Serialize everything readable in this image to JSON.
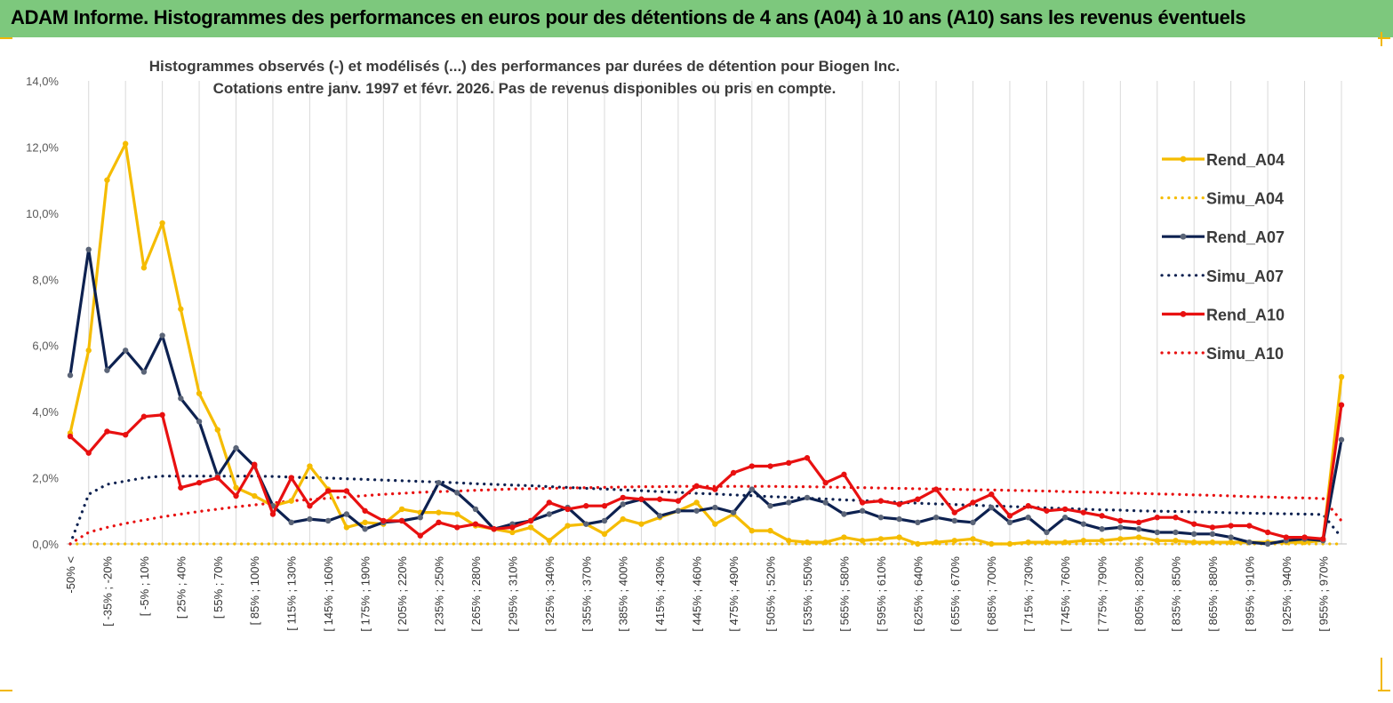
{
  "header": {
    "title": "ADAM Informe. Histogrammes des performances en euros pour des détentions de 4 ans (A04) à 10 ans (A10) sans les revenus éventuels"
  },
  "colors": {
    "header_bg": "#7dc87d",
    "A04": "#f5bc00",
    "A07": "#0d2150",
    "A07_marker": "#5b6578",
    "A10": "#e81010",
    "grid": "#d9d9d9",
    "corner_accent": "#f2b705"
  },
  "chart_data": {
    "type": "line",
    "title": [
      "Histogrammes observés (-) et modélisés (...) des performances par durées de détention pour Biogen Inc.",
      "Cotations entre janv. 1997 et févr. 2026. Pas de revenus disponibles ou pris en compte."
    ],
    "ylim": [
      0,
      14
    ],
    "yticks": [
      "0,0%",
      "2,0%",
      "4,0%",
      "6,0%",
      "8,0%",
      "10,0%",
      "12,0%",
      "14,0%"
    ],
    "grid": "vertical",
    "legend_position": "right",
    "xticklabels": [
      "-50% <",
      "[ -35% ; -20%",
      "[ -5% ; 10%",
      "[ 25% ; 40%",
      "[ 55% ; 70%",
      "[ 85% ; 100%",
      "[ 115% ; 130%",
      "[ 145% ; 160%",
      "[ 175% ; 190%",
      "[ 205% ; 220%",
      "[ 235% ; 250%",
      "[ 265% ; 280%",
      "[ 295% ; 310%",
      "[ 325% ; 340%",
      "[ 355% ; 370%",
      "[ 385% ; 400%",
      "[ 415% ; 430%",
      "[ 445% ; 460%",
      "[ 475% ; 490%",
      "[ 505% ; 520%",
      "[ 535% ; 550%",
      "[ 565% ; 580%",
      "[ 595% ; 610%",
      "[ 625% ; 640%",
      "[ 655% ; 670%",
      "[ 685% ; 700%",
      "[ 715% ; 730%",
      "[ 745% ; 760%",
      "[ 775% ; 790%",
      "[ 805% ; 820%",
      "[ 835% ; 850%",
      "[ 865% ; 880%",
      "[ 895% ; 910%",
      "[ 925% ; 940%",
      "[ 955% ; 970%"
    ],
    "series": [
      {
        "name": "Rend_A04",
        "style": "solid",
        "values": [
          3.35,
          5.85,
          11.0,
          12.1,
          8.35,
          9.7,
          7.1,
          4.55,
          3.45,
          1.7,
          1.45,
          1.15,
          1.3,
          2.35,
          1.65,
          0.5,
          0.65,
          0.6,
          1.05,
          0.95,
          0.95,
          0.9,
          0.55,
          0.45,
          0.35,
          0.5,
          0.1,
          0.55,
          0.6,
          0.3,
          0.75,
          0.6,
          0.8,
          1.0,
          1.25,
          0.6,
          0.9,
          0.4,
          0.4,
          0.1,
          0.05,
          0.05,
          0.2,
          0.1,
          0.15,
          0.2,
          0.0,
          0.05,
          0.1,
          0.15,
          0.0,
          0.0,
          0.05,
          0.05,
          0.05,
          0.1,
          0.1,
          0.15,
          0.2,
          0.1,
          0.1,
          0.05,
          0.05,
          0.05,
          0.05,
          0.05,
          0.05,
          0.05,
          0.1,
          5.05
        ]
      },
      {
        "name": "Simu_A04",
        "style": "dotted",
        "values": [
          0.0,
          0.0,
          0.0,
          0.0,
          0.0,
          0.0,
          0.0,
          0.0,
          0.0,
          0.0,
          0.0,
          0.0,
          0.0,
          0.0,
          0.0,
          0.0,
          0.0,
          0.0,
          0.0,
          0.0,
          0.0,
          0.0,
          0.0,
          0.0,
          0.0,
          0.0,
          0.0,
          0.0,
          0.0,
          0.0,
          0.0,
          0.0,
          0.0,
          0.0,
          0.0,
          0.0,
          0.0,
          0.0,
          0.0,
          0.0,
          0.0,
          0.0,
          0.0,
          0.0,
          0.0,
          0.0,
          0.0,
          0.0,
          0.0,
          0.0,
          0.0,
          0.0,
          0.0,
          0.0,
          0.0,
          0.0,
          0.0,
          0.0,
          0.0,
          0.0,
          0.0,
          0.0,
          0.0,
          0.0,
          0.0,
          0.0,
          0.0,
          0.0,
          0.0,
          0.0
        ]
      },
      {
        "name": "Rend_A07",
        "style": "solid",
        "values": [
          5.1,
          8.9,
          5.25,
          5.85,
          5.2,
          6.3,
          4.4,
          3.7,
          2.05,
          2.9,
          2.35,
          1.15,
          0.65,
          0.75,
          0.7,
          0.9,
          0.45,
          0.65,
          0.7,
          0.8,
          1.85,
          1.55,
          1.05,
          0.45,
          0.6,
          0.7,
          0.9,
          1.1,
          0.6,
          0.7,
          1.2,
          1.35,
          0.85,
          1.0,
          1.0,
          1.1,
          0.95,
          1.65,
          1.15,
          1.25,
          1.4,
          1.25,
          0.9,
          1.0,
          0.8,
          0.75,
          0.65,
          0.8,
          0.7,
          0.65,
          1.1,
          0.65,
          0.8,
          0.35,
          0.8,
          0.6,
          0.45,
          0.5,
          0.45,
          0.35,
          0.35,
          0.3,
          0.3,
          0.2,
          0.05,
          0.0,
          0.1,
          0.15,
          0.1,
          3.15
        ]
      },
      {
        "name": "Simu_A07",
        "style": "dotted",
        "values": [
          0.0,
          1.5,
          1.8,
          1.9,
          2.0,
          2.05,
          2.05,
          2.05,
          2.05,
          2.05,
          2.05,
          2.04,
          2.02,
          2.0,
          1.99,
          1.97,
          1.95,
          1.93,
          1.91,
          1.89,
          1.87,
          1.85,
          1.82,
          1.8,
          1.78,
          1.76,
          1.73,
          1.71,
          1.68,
          1.66,
          1.63,
          1.61,
          1.58,
          1.56,
          1.53,
          1.51,
          1.48,
          1.46,
          1.43,
          1.41,
          1.38,
          1.36,
          1.33,
          1.31,
          1.28,
          1.26,
          1.23,
          1.21,
          1.19,
          1.17,
          1.15,
          1.13,
          1.11,
          1.09,
          1.07,
          1.05,
          1.03,
          1.02,
          1.0,
          0.99,
          0.98,
          0.97,
          0.96,
          0.94,
          0.93,
          0.92,
          0.91,
          0.9,
          0.89,
          0.2
        ]
      },
      {
        "name": "Rend_A10",
        "style": "solid",
        "values": [
          3.25,
          2.75,
          3.4,
          3.3,
          3.85,
          3.9,
          1.7,
          1.85,
          2.0,
          1.45,
          2.4,
          0.9,
          2.0,
          1.15,
          1.6,
          1.6,
          1.0,
          0.7,
          0.7,
          0.25,
          0.65,
          0.5,
          0.6,
          0.45,
          0.5,
          0.7,
          1.25,
          1.05,
          1.15,
          1.15,
          1.4,
          1.35,
          1.35,
          1.3,
          1.75,
          1.65,
          2.15,
          2.35,
          2.35,
          2.45,
          2.6,
          1.85,
          2.1,
          1.25,
          1.3,
          1.2,
          1.35,
          1.65,
          0.95,
          1.25,
          1.5,
          0.85,
          1.15,
          1.0,
          1.05,
          0.95,
          0.85,
          0.7,
          0.65,
          0.8,
          0.8,
          0.6,
          0.5,
          0.55,
          0.55,
          0.35,
          0.2,
          0.2,
          0.15,
          4.2
        ]
      },
      {
        "name": "Simu_A10",
        "style": "dotted",
        "values": [
          0.0,
          0.35,
          0.5,
          0.62,
          0.72,
          0.82,
          0.9,
          0.98,
          1.05,
          1.12,
          1.18,
          1.24,
          1.3,
          1.34,
          1.38,
          1.42,
          1.46,
          1.5,
          1.53,
          1.56,
          1.58,
          1.6,
          1.62,
          1.64,
          1.66,
          1.67,
          1.68,
          1.69,
          1.7,
          1.71,
          1.72,
          1.73,
          1.73,
          1.74,
          1.74,
          1.74,
          1.74,
          1.74,
          1.74,
          1.73,
          1.73,
          1.72,
          1.71,
          1.7,
          1.69,
          1.68,
          1.67,
          1.66,
          1.65,
          1.64,
          1.63,
          1.62,
          1.61,
          1.6,
          1.58,
          1.57,
          1.56,
          1.54,
          1.53,
          1.51,
          1.5,
          1.48,
          1.47,
          1.45,
          1.43,
          1.42,
          1.4,
          1.39,
          1.37,
          0.7
        ]
      }
    ]
  }
}
